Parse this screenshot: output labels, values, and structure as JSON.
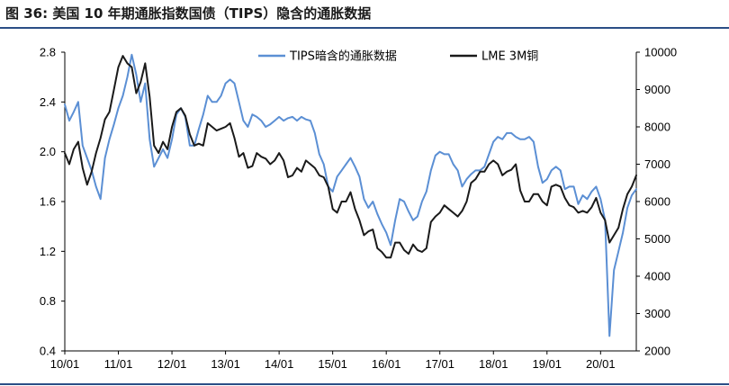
{
  "header": {
    "title": "图 36:  美国 10 年期通胀指数国债（TIPS）隐含的通胀数据"
  },
  "chart_data": {
    "type": "line",
    "title": "图 36:  美国 10 年期通胀指数国债（TIPS）隐含的通胀数据",
    "xlabel": "",
    "ylabel_left": "",
    "ylabel_right": "",
    "x_ticks": [
      "10/01",
      "11/01",
      "12/01",
      "13/01",
      "14/01",
      "15/01",
      "16/01",
      "17/01",
      "18/01",
      "19/01",
      "20/01"
    ],
    "y_left": {
      "ticks": [
        "0.4",
        "0.8",
        "1.2",
        "1.6",
        "2.0",
        "2.4",
        "2.8"
      ],
      "range": [
        0.4,
        2.8
      ]
    },
    "y_right": {
      "ticks": [
        "2000",
        "3000",
        "4000",
        "5000",
        "6000",
        "7000",
        "8000",
        "9000",
        "10000"
      ],
      "range": [
        2000,
        10000
      ]
    },
    "grid": false,
    "legend_position": "top",
    "series": [
      {
        "name": "TIPS暗含的通胀数据",
        "axis": "left",
        "color": "#5b8fd4",
        "x": [
          "2010-01",
          "2010-02",
          "2010-03",
          "2010-04",
          "2010-05",
          "2010-06",
          "2010-07",
          "2010-08",
          "2010-09",
          "2010-10",
          "2010-11",
          "2010-12",
          "2011-01",
          "2011-02",
          "2011-03",
          "2011-04",
          "2011-05",
          "2011-06",
          "2011-07",
          "2011-08",
          "2011-09",
          "2011-10",
          "2011-11",
          "2011-12",
          "2012-01",
          "2012-02",
          "2012-03",
          "2012-04",
          "2012-05",
          "2012-06",
          "2012-07",
          "2012-08",
          "2012-09",
          "2012-10",
          "2012-11",
          "2012-12",
          "2013-01",
          "2013-02",
          "2013-03",
          "2013-04",
          "2013-05",
          "2013-06",
          "2013-07",
          "2013-08",
          "2013-09",
          "2013-10",
          "2013-11",
          "2013-12",
          "2014-01",
          "2014-02",
          "2014-03",
          "2014-04",
          "2014-05",
          "2014-06",
          "2014-07",
          "2014-08",
          "2014-09",
          "2014-10",
          "2014-11",
          "2014-12",
          "2015-01",
          "2015-02",
          "2015-03",
          "2015-04",
          "2015-05",
          "2015-06",
          "2015-07",
          "2015-08",
          "2015-09",
          "2015-10",
          "2015-11",
          "2015-12",
          "2016-01",
          "2016-02",
          "2016-03",
          "2016-04",
          "2016-05",
          "2016-06",
          "2016-07",
          "2016-08",
          "2016-09",
          "2016-10",
          "2016-11",
          "2016-12",
          "2017-01",
          "2017-02",
          "2017-03",
          "2017-04",
          "2017-05",
          "2017-06",
          "2017-07",
          "2017-08",
          "2017-09",
          "2017-10",
          "2017-11",
          "2017-12",
          "2018-01",
          "2018-02",
          "2018-03",
          "2018-04",
          "2018-05",
          "2018-06",
          "2018-07",
          "2018-08",
          "2018-09",
          "2018-10",
          "2018-11",
          "2018-12",
          "2019-01",
          "2019-02",
          "2019-03",
          "2019-04",
          "2019-05",
          "2019-06",
          "2019-07",
          "2019-08",
          "2019-09",
          "2019-10",
          "2019-11",
          "2019-12",
          "2020-01",
          "2020-02",
          "2020-03",
          "2020-04",
          "2020-05",
          "2020-06",
          "2020-07",
          "2020-08",
          "2020-09"
        ],
        "values": [
          2.38,
          2.25,
          2.32,
          2.4,
          2.05,
          1.95,
          1.85,
          1.72,
          1.62,
          1.95,
          2.1,
          2.22,
          2.35,
          2.45,
          2.6,
          2.78,
          2.62,
          2.4,
          2.55,
          2.1,
          1.88,
          1.95,
          2.02,
          1.95,
          2.1,
          2.3,
          2.35,
          2.28,
          2.05,
          2.05,
          2.18,
          2.3,
          2.45,
          2.4,
          2.4,
          2.45,
          2.55,
          2.58,
          2.55,
          2.4,
          2.25,
          2.2,
          2.3,
          2.28,
          2.25,
          2.2,
          2.22,
          2.25,
          2.28,
          2.25,
          2.27,
          2.28,
          2.25,
          2.28,
          2.26,
          2.25,
          2.15,
          1.98,
          1.9,
          1.72,
          1.68,
          1.8,
          1.85,
          1.9,
          1.95,
          1.88,
          1.8,
          1.62,
          1.55,
          1.6,
          1.5,
          1.42,
          1.35,
          1.25,
          1.45,
          1.62,
          1.6,
          1.52,
          1.45,
          1.48,
          1.6,
          1.68,
          1.85,
          1.97,
          2.0,
          1.98,
          1.98,
          1.9,
          1.85,
          1.72,
          1.78,
          1.82,
          1.85,
          1.85,
          1.88,
          1.98,
          2.08,
          2.12,
          2.1,
          2.15,
          2.15,
          2.12,
          2.1,
          2.1,
          2.12,
          2.08,
          1.88,
          1.75,
          1.78,
          1.85,
          1.88,
          1.85,
          1.7,
          1.72,
          1.72,
          1.58,
          1.65,
          1.62,
          1.68,
          1.72,
          1.62,
          1.45,
          0.52,
          1.05,
          1.2,
          1.35,
          1.55,
          1.65,
          1.7
        ]
      },
      {
        "name": "LME 3M铜",
        "axis": "right",
        "color": "#1a1a1a",
        "x": [
          "2010-01",
          "2010-02",
          "2010-03",
          "2010-04",
          "2010-05",
          "2010-06",
          "2010-07",
          "2010-08",
          "2010-09",
          "2010-10",
          "2010-11",
          "2010-12",
          "2011-01",
          "2011-02",
          "2011-03",
          "2011-04",
          "2011-05",
          "2011-06",
          "2011-07",
          "2011-08",
          "2011-09",
          "2011-10",
          "2011-11",
          "2011-12",
          "2012-01",
          "2012-02",
          "2012-03",
          "2012-04",
          "2012-05",
          "2012-06",
          "2012-07",
          "2012-08",
          "2012-09",
          "2012-10",
          "2012-11",
          "2012-12",
          "2013-01",
          "2013-02",
          "2013-03",
          "2013-04",
          "2013-05",
          "2013-06",
          "2013-07",
          "2013-08",
          "2013-09",
          "2013-10",
          "2013-11",
          "2013-12",
          "2014-01",
          "2014-02",
          "2014-03",
          "2014-04",
          "2014-05",
          "2014-06",
          "2014-07",
          "2014-08",
          "2014-09",
          "2014-10",
          "2014-11",
          "2014-12",
          "2015-01",
          "2015-02",
          "2015-03",
          "2015-04",
          "2015-05",
          "2015-06",
          "2015-07",
          "2015-08",
          "2015-09",
          "2015-10",
          "2015-11",
          "2015-12",
          "2016-01",
          "2016-02",
          "2016-03",
          "2016-04",
          "2016-05",
          "2016-06",
          "2016-07",
          "2016-08",
          "2016-09",
          "2016-10",
          "2016-11",
          "2016-12",
          "2017-01",
          "2017-02",
          "2017-03",
          "2017-04",
          "2017-05",
          "2017-06",
          "2017-07",
          "2017-08",
          "2017-09",
          "2017-10",
          "2017-11",
          "2017-12",
          "2018-01",
          "2018-02",
          "2018-03",
          "2018-04",
          "2018-05",
          "2018-06",
          "2018-07",
          "2018-08",
          "2018-09",
          "2018-10",
          "2018-11",
          "2018-12",
          "2019-01",
          "2019-02",
          "2019-03",
          "2019-04",
          "2019-05",
          "2019-06",
          "2019-07",
          "2019-08",
          "2019-09",
          "2019-10",
          "2019-11",
          "2019-12",
          "2020-01",
          "2020-02",
          "2020-03",
          "2020-04",
          "2020-05",
          "2020-06",
          "2020-07",
          "2020-08",
          "2020-09"
        ],
        "values": [
          7300,
          7000,
          7400,
          7600,
          6900,
          6450,
          6800,
          7300,
          7700,
          8200,
          8400,
          9000,
          9600,
          9900,
          9700,
          9600,
          8900,
          9200,
          9700,
          8800,
          7500,
          7300,
          7600,
          7400,
          8000,
          8400,
          8500,
          8300,
          7800,
          7500,
          7550,
          7500,
          8100,
          8000,
          7900,
          7950,
          8000,
          8100,
          7700,
          7200,
          7300,
          6900,
          6950,
          7300,
          7200,
          7150,
          7000,
          7100,
          7300,
          7100,
          6650,
          6700,
          6900,
          6800,
          7100,
          7000,
          6900,
          6700,
          6650,
          6400,
          5800,
          5700,
          6000,
          6000,
          6250,
          5800,
          5500,
          5100,
          5200,
          5250,
          4750,
          4650,
          4500,
          4500,
          4900,
          4900,
          4700,
          4600,
          4850,
          4700,
          4650,
          4750,
          5450,
          5600,
          5700,
          5900,
          5800,
          5700,
          5600,
          5750,
          6000,
          6500,
          6600,
          6800,
          6800,
          7000,
          7100,
          7000,
          6700,
          6800,
          6850,
          7000,
          6300,
          6000,
          6000,
          6200,
          6200,
          6000,
          5900,
          6400,
          6450,
          6400,
          6100,
          5900,
          5850,
          5700,
          5750,
          5700,
          5850,
          6100,
          5700,
          5500,
          4900,
          5100,
          5300,
          5800,
          6200,
          6400,
          6700
        ]
      }
    ]
  }
}
